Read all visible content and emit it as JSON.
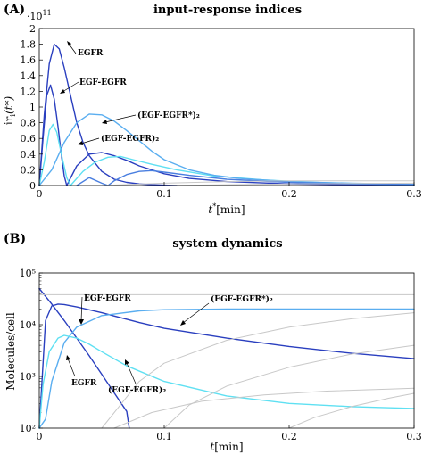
{
  "colors": {
    "dark_blue": "#2a3fbf",
    "mid_blue": "#4a7fe0",
    "light_blue": "#5aaef0",
    "cyan": "#5fe0f2",
    "gray": "#c8c8c8"
  },
  "panels": [
    {
      "label": "(A)",
      "title": "input-response indices",
      "ylabel_main": "ir",
      "ylabel_sub": "i",
      "ylabel_arg": "(t*)",
      "scale": "·10",
      "scale_exp": "11",
      "xlabel_t": "t",
      "xlabel_star": "*",
      "xlabel_unit": "[min]"
    },
    {
      "label": "(B)",
      "title": "system dynamics",
      "ylabel": "Molecules/cell",
      "xlabel_t": "t",
      "xlabel_unit": "[min]"
    }
  ],
  "chart_data": [
    {
      "type": "line",
      "title": "input-response indices",
      "xlim": [
        0,
        0.3
      ],
      "ylim": [
        0,
        2
      ],
      "y_multiplier": "1e11",
      "xticks": [
        "0",
        "0.1",
        "0.2",
        "0.3"
      ],
      "yticks": [
        "0",
        "0.2",
        "0.4",
        "0.6",
        "0.8",
        "1",
        "1.2",
        "1.4",
        "1.6",
        "1.8",
        "2"
      ],
      "annotations": [
        "EGFR",
        "EGF-EGFR",
        "(EGF-EGFR*)₂",
        "(EGF-EGFR)₂"
      ],
      "series": [
        {
          "color": "dark_blue",
          "x": [
            0,
            0.004,
            0.008,
            0.012,
            0.016,
            0.02,
            0.025,
            0.03,
            0.035,
            0.04,
            0.05,
            0.06,
            0.07,
            0.08,
            0.09,
            0.1,
            0.11
          ],
          "y": [
            0,
            0.9,
            1.55,
            1.8,
            1.74,
            1.5,
            1.15,
            0.8,
            0.55,
            0.38,
            0.18,
            0.08,
            0.04,
            0.02,
            0.01,
            0.005,
            0
          ]
        },
        {
          "color": "dark_blue",
          "x": [
            0,
            0.003,
            0.006,
            0.009,
            0.012,
            0.015,
            0.018,
            0.02,
            0.022
          ],
          "y": [
            0,
            0.6,
            1.15,
            1.28,
            1.1,
            0.75,
            0.35,
            0.12,
            0
          ]
        },
        {
          "color": "dark_blue",
          "x": [
            0.022,
            0.03,
            0.04,
            0.05,
            0.06,
            0.07,
            0.08,
            0.1,
            0.12,
            0.15,
            0.2,
            0.25,
            0.3
          ],
          "y": [
            0,
            0.25,
            0.4,
            0.42,
            0.38,
            0.32,
            0.25,
            0.15,
            0.09,
            0.05,
            0.02,
            0.01,
            0.005
          ]
        },
        {
          "color": "cyan",
          "x": [
            0,
            0.004,
            0.008,
            0.011,
            0.014,
            0.018,
            0.022,
            0.025
          ],
          "y": [
            0,
            0.3,
            0.7,
            0.78,
            0.68,
            0.38,
            0.1,
            0
          ]
        },
        {
          "color": "cyan",
          "x": [
            0.025,
            0.035,
            0.045,
            0.055,
            0.065,
            0.075,
            0.09,
            0.11,
            0.14,
            0.18,
            0.22,
            0.26,
            0.3
          ],
          "y": [
            0,
            0.18,
            0.3,
            0.36,
            0.37,
            0.33,
            0.27,
            0.2,
            0.12,
            0.07,
            0.04,
            0.02,
            0.01
          ]
        },
        {
          "color": "light_blue",
          "x": [
            0,
            0.01,
            0.02,
            0.03,
            0.04,
            0.05,
            0.06,
            0.07,
            0.08,
            0.09,
            0.1,
            0.12,
            0.14,
            0.16,
            0.18,
            0.2,
            0.22,
            0.25,
            0.28,
            0.3
          ],
          "y": [
            0,
            0.2,
            0.55,
            0.8,
            0.91,
            0.9,
            0.82,
            0.7,
            0.57,
            0.44,
            0.33,
            0.2,
            0.13,
            0.09,
            0.07,
            0.05,
            0.04,
            0.03,
            0.02,
            0.015
          ]
        },
        {
          "color": "mid_blue",
          "x": [
            0.03,
            0.04,
            0.05,
            0.055,
            0.06,
            0.07,
            0.08,
            0.09,
            0.1,
            0.12,
            0.15,
            0.2,
            0.25,
            0.3
          ],
          "y": [
            0,
            0.1,
            0.03,
            0,
            0.06,
            0.14,
            0.18,
            0.19,
            0.17,
            0.13,
            0.08,
            0.04,
            0.02,
            0.01
          ]
        },
        {
          "color": "gray",
          "x": [
            0.05,
            0.1,
            0.15,
            0.2,
            0.25,
            0.3
          ],
          "y": [
            0,
            0.03,
            0.05,
            0.06,
            0.06,
            0.06
          ]
        },
        {
          "color": "gray",
          "x": [
            0.1,
            0.15,
            0.2,
            0.25,
            0.3
          ],
          "y": [
            0,
            0.01,
            0.02,
            0.025,
            0.03
          ]
        }
      ]
    },
    {
      "type": "line",
      "title": "system dynamics",
      "xlim": [
        0,
        0.3
      ],
      "ylim": [
        100,
        100000
      ],
      "yscale": "log",
      "xticks": [
        "0",
        "0.1",
        "0.2",
        "0.3"
      ],
      "yticks": [
        "10²",
        "10³",
        "10⁴",
        "10⁵"
      ],
      "annotations": [
        "EGF-EGFR",
        "(EGF-EGFR*)₂",
        "EGFR",
        "(EGF-EGFR)₂"
      ],
      "series": [
        {
          "color": "dark_blue",
          "x": [
            0,
            0.01,
            0.02,
            0.03,
            0.04,
            0.05,
            0.06,
            0.07,
            0.072
          ],
          "y": [
            50000,
            25000,
            12000,
            5500,
            2500,
            1100,
            480,
            210,
            100
          ]
        },
        {
          "color": "dark_blue",
          "x": [
            0,
            0.005,
            0.01,
            0.015,
            0.02,
            0.03,
            0.05,
            0.08,
            0.1,
            0.15,
            0.2,
            0.25,
            0.3
          ],
          "y": [
            100,
            12000,
            23000,
            25000,
            24500,
            22000,
            17000,
            11000,
            8500,
            5500,
            3800,
            2800,
            2200
          ]
        },
        {
          "color": "light_blue",
          "x": [
            0,
            0.005,
            0.01,
            0.02,
            0.03,
            0.05,
            0.08,
            0.1,
            0.15,
            0.2,
            0.25,
            0.3
          ],
          "y": [
            100,
            150,
            800,
            4500,
            9000,
            15000,
            18500,
            19500,
            20000,
            20000,
            20000,
            20000
          ]
        },
        {
          "color": "cyan",
          "x": [
            0,
            0.003,
            0.008,
            0.015,
            0.02,
            0.03,
            0.04,
            0.05,
            0.07,
            0.1,
            0.15,
            0.2,
            0.25,
            0.3
          ],
          "y": [
            100,
            700,
            3000,
            5500,
            6200,
            5500,
            4200,
            3000,
            1600,
            800,
            420,
            300,
            260,
            240
          ]
        },
        {
          "color": "gray",
          "x": [
            0,
            0.3
          ],
          "y": [
            38000,
            38000
          ]
        },
        {
          "color": "gray",
          "x": [
            0.05,
            0.08,
            0.1,
            0.15,
            0.2,
            0.25,
            0.3
          ],
          "y": [
            100,
            800,
            1800,
            5000,
            9000,
            13000,
            17000
          ]
        },
        {
          "color": "gray",
          "x": [
            0.1,
            0.12,
            0.15,
            0.2,
            0.25,
            0.3
          ],
          "y": [
            100,
            280,
            650,
            1500,
            2700,
            4000
          ]
        },
        {
          "color": "gray",
          "x": [
            0.2,
            0.22,
            0.25,
            0.28,
            0.3
          ],
          "y": [
            100,
            160,
            260,
            380,
            470
          ]
        },
        {
          "color": "gray",
          "x": [
            0.06,
            0.09,
            0.13,
            0.18,
            0.23,
            0.28,
            0.3
          ],
          "y": [
            100,
            200,
            330,
            440,
            520,
            570,
            590
          ]
        }
      ]
    }
  ]
}
